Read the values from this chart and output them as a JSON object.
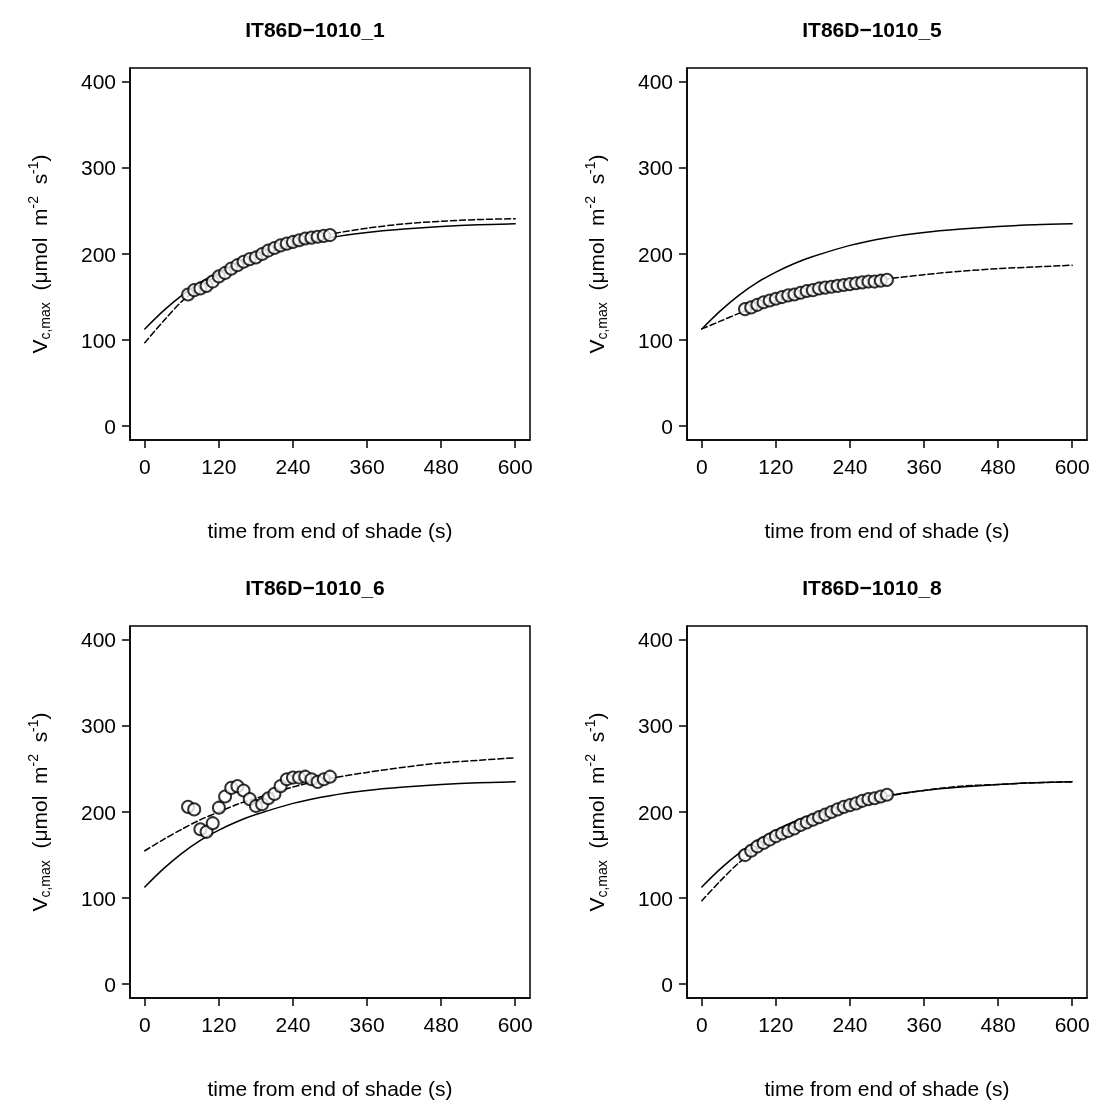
{
  "chart_data": [
    {
      "type": "scatter",
      "title": "IT86D−1010_1",
      "xlabel": "time from end of shade (s)",
      "ylabel": "V$_{c,max}$  (μmol  m$^{-2}$  s$^{-1}$)",
      "xlim": [
        -24,
        624
      ],
      "ylim": [
        -16,
        416
      ],
      "xticks": [
        0,
        120,
        240,
        360,
        480,
        600
      ],
      "yticks": [
        0,
        100,
        200,
        300,
        400
      ],
      "marker": "circle",
      "series": [
        {
          "type": "scatter",
          "color": "#000000",
          "x": [
            70,
            80,
            90,
            100,
            110,
            120,
            130,
            140,
            150,
            160,
            170,
            180,
            190,
            200,
            210,
            220,
            230,
            240,
            250,
            260,
            270,
            280,
            290,
            300
          ],
          "values": [
            153,
            158,
            160,
            163,
            168,
            174,
            178,
            183,
            187,
            191,
            194,
            196,
            200,
            204,
            207,
            210,
            212,
            214,
            216,
            218,
            219,
            220,
            221,
            222
          ]
        },
        {
          "type": "line",
          "color": "#000000",
          "line_style": "solid",
          "marker": "none",
          "x": [
            0,
            30,
            60,
            90,
            120,
            150,
            180,
            240,
            300,
            360,
            420,
            480,
            540,
            600
          ],
          "values": [
            113,
            134,
            152,
            167,
            179,
            189,
            197,
            210,
            219,
            225,
            229,
            232,
            234,
            235
          ]
        },
        {
          "type": "line",
          "color": "#000000",
          "line_style": "dashed",
          "marker": "none",
          "x": [
            0,
            30,
            60,
            90,
            120,
            150,
            180,
            240,
            300,
            360,
            420,
            480,
            540,
            600
          ],
          "values": [
            97,
            122,
            145,
            162,
            177,
            190,
            200,
            214,
            223,
            230,
            235,
            238,
            240,
            241
          ]
        }
      ]
    },
    {
      "type": "scatter",
      "title": "IT86D−1010_5",
      "xlabel": "time from end of shade (s)",
      "ylabel": "V$_{c,max}$  (μmol  m$^{-2}$  s$^{-1}$)",
      "xlim": [
        -24,
        624
      ],
      "ylim": [
        -16,
        416
      ],
      "xticks": [
        0,
        120,
        240,
        360,
        480,
        600
      ],
      "yticks": [
        0,
        100,
        200,
        300,
        400
      ],
      "marker": "circle",
      "series": [
        {
          "type": "scatter",
          "color": "#000000",
          "x": [
            70,
            80,
            90,
            100,
            110,
            120,
            130,
            140,
            150,
            160,
            170,
            180,
            190,
            200,
            210,
            220,
            230,
            240,
            250,
            260,
            270,
            280,
            290,
            300
          ],
          "values": [
            136,
            138,
            141,
            144,
            146,
            148,
            150,
            152,
            153,
            155,
            157,
            158,
            160,
            161,
            162,
            163,
            164,
            165,
            166,
            167,
            168,
            168,
            169,
            170
          ]
        },
        {
          "type": "line",
          "color": "#000000",
          "line_style": "solid",
          "marker": "none",
          "x": [
            0,
            30,
            60,
            90,
            120,
            150,
            180,
            240,
            300,
            360,
            420,
            480,
            540,
            600
          ],
          "values": [
            113,
            134,
            152,
            167,
            179,
            189,
            197,
            210,
            219,
            225,
            229,
            232,
            234,
            235
          ]
        },
        {
          "type": "line",
          "color": "#000000",
          "line_style": "dashed",
          "marker": "none",
          "x": [
            0,
            30,
            60,
            90,
            120,
            150,
            180,
            240,
            300,
            360,
            420,
            480,
            540,
            600
          ],
          "values": [
            113,
            122,
            131,
            139,
            146,
            152,
            157,
            165,
            171,
            176,
            180,
            183,
            185,
            187
          ]
        }
      ]
    },
    {
      "type": "scatter",
      "title": "IT86D−1010_6",
      "xlabel": "time from end of shade (s)",
      "ylabel": "V$_{c,max}$  (μmol  m$^{-2}$  s$^{-1}$)",
      "xlim": [
        -24,
        624
      ],
      "ylim": [
        -16,
        416
      ],
      "xticks": [
        0,
        120,
        240,
        360,
        480,
        600
      ],
      "yticks": [
        0,
        100,
        200,
        300,
        400
      ],
      "marker": "circle",
      "series": [
        {
          "type": "scatter",
          "color": "#000000",
          "x": [
            70,
            80,
            90,
            100,
            110,
            120,
            130,
            140,
            150,
            160,
            170,
            180,
            190,
            200,
            210,
            220,
            230,
            240,
            250,
            260,
            270,
            280,
            290,
            300
          ],
          "values": [
            206,
            203,
            180,
            177,
            187,
            205,
            218,
            228,
            230,
            225,
            215,
            207,
            209,
            216,
            221,
            230,
            238,
            240,
            240,
            241,
            238,
            235,
            238,
            241
          ]
        },
        {
          "type": "line",
          "color": "#000000",
          "line_style": "solid",
          "marker": "none",
          "x": [
            0,
            30,
            60,
            90,
            120,
            150,
            180,
            240,
            300,
            360,
            420,
            480,
            540,
            600
          ],
          "values": [
            113,
            134,
            152,
            167,
            179,
            189,
            197,
            210,
            219,
            225,
            229,
            232,
            234,
            235
          ]
        },
        {
          "type": "line",
          "color": "#000000",
          "line_style": "dashed",
          "marker": "none",
          "x": [
            0,
            30,
            60,
            90,
            120,
            150,
            180,
            240,
            300,
            360,
            420,
            480,
            540,
            600
          ],
          "values": [
            155,
            168,
            180,
            191,
            200,
            209,
            216,
            229,
            239,
            246,
            252,
            257,
            260,
            263
          ]
        }
      ]
    },
    {
      "type": "scatter",
      "title": "IT86D−1010_8",
      "xlabel": "time from end of shade (s)",
      "ylabel": "V$_{c,max}$  (μmol  m$^{-2}$  s$^{-1}$)",
      "xlim": [
        -24,
        624
      ],
      "ylim": [
        -16,
        416
      ],
      "xticks": [
        0,
        120,
        240,
        360,
        480,
        600
      ],
      "yticks": [
        0,
        100,
        200,
        300,
        400
      ],
      "marker": "circle",
      "series": [
        {
          "type": "scatter",
          "color": "#000000",
          "x": [
            70,
            80,
            90,
            100,
            110,
            120,
            130,
            140,
            150,
            160,
            170,
            180,
            190,
            200,
            210,
            220,
            230,
            240,
            250,
            260,
            270,
            280,
            290,
            300
          ],
          "values": [
            150,
            155,
            160,
            164,
            168,
            172,
            175,
            178,
            181,
            185,
            188,
            191,
            194,
            197,
            200,
            203,
            206,
            208,
            210,
            213,
            215,
            216,
            218,
            220
          ]
        },
        {
          "type": "line",
          "color": "#000000",
          "line_style": "solid",
          "marker": "none",
          "x": [
            0,
            30,
            60,
            90,
            120,
            150,
            180,
            240,
            300,
            360,
            420,
            480,
            540,
            600
          ],
          "values": [
            113,
            134,
            152,
            167,
            179,
            189,
            197,
            210,
            219,
            225,
            229,
            232,
            234,
            235
          ]
        },
        {
          "type": "line",
          "color": "#000000",
          "line_style": "dashed",
          "marker": "none",
          "x": [
            0,
            30,
            60,
            90,
            120,
            150,
            180,
            240,
            300,
            360,
            420,
            480,
            540,
            600
          ],
          "values": [
            97,
            120,
            141,
            157,
            171,
            183,
            193,
            207,
            218,
            225,
            230,
            232,
            234,
            235
          ]
        }
      ]
    }
  ]
}
